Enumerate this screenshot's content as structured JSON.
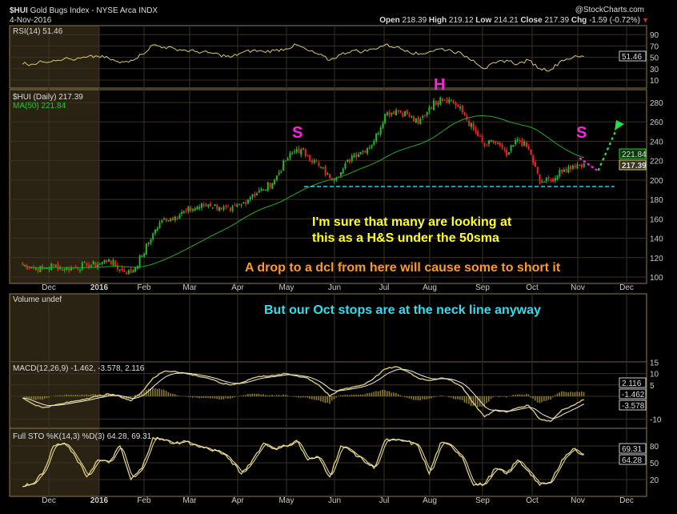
{
  "header": {
    "symbol": "$HUI",
    "name": "Gold Bugs Index - NYSE Arca INDX",
    "date": "4-Nov-2016",
    "brand": "@StockCharts.com",
    "open_label": "Open",
    "open": "218.39",
    "high_label": "High",
    "high": "219.12",
    "low_label": "Low",
    "low": "214.21",
    "close_label": "Close",
    "close": "217.39",
    "chg_label": "Chg",
    "chg": "-1.59 (-0.72%)"
  },
  "colors": {
    "up": "#22bb22",
    "down": "#ee2222",
    "ma": "#22aa22",
    "ind": "#d8c878",
    "grid": "#3a3222",
    "neckline": "#33ccdd",
    "magenta": "#ff22dd",
    "arrow": "#22dd44"
  },
  "panels": {
    "rsi": {
      "legend": "RSI(14) 51.46",
      "value": "51.46",
      "ticks": [
        "90",
        "70",
        "50",
        "30",
        "10"
      ]
    },
    "price": {
      "legend1": "$HUI (Daily) 217.39",
      "legend2": "MA(50) 221.84",
      "ma_value": "221.84",
      "close_value": "217.39",
      "ticks": [
        "280",
        "260",
        "240",
        "220",
        "200",
        "180",
        "160",
        "140",
        "120",
        "100"
      ]
    },
    "volume": {
      "legend": "Volume undef"
    },
    "macd": {
      "legend": "MACD(12,26,9) -1.462, -3.578, 2.116",
      "v1": "2.116",
      "v2": "-1.462",
      "v3": "-3.578",
      "ticks": [
        "15",
        "10",
        "5",
        "-10"
      ]
    },
    "sto": {
      "legend": "Full STO %K(14,3) %D(3) 64.28, 69.31",
      "v1": "69.31",
      "v2": "64.28",
      "ticks": [
        "80",
        "50",
        "20"
      ]
    }
  },
  "months": [
    "Dec",
    "2016",
    "Feb",
    "Mar",
    "Apr",
    "May",
    "Jun",
    "Jul",
    "Aug",
    "Sep",
    "Oct",
    "Nov",
    "Dec"
  ],
  "annotations": {
    "s1": "S",
    "h": "H",
    "s2": "S",
    "line1": "I'm sure that many are looking at",
    "line2": "this as a H&S under the 50sma",
    "line3": "A drop to a dcl from here will cause some to short it",
    "line4": "But our Oct stops are at the neck line anyway"
  },
  "chart_data": {
    "type": "candlestick",
    "title": "$HUI Gold Bugs Index - NYSE Arca INDX",
    "ylim": [
      100,
      290
    ],
    "dates": [
      "2015-11-13",
      "2015-11-20",
      "2015-11-27",
      "2015-12-04",
      "2015-12-11",
      "2015-12-18",
      "2015-12-25",
      "2016-01-01",
      "2016-01-08",
      "2016-01-15",
      "2016-01-22",
      "2016-01-29",
      "2016-02-05",
      "2016-02-12",
      "2016-02-19",
      "2016-02-26",
      "2016-03-04",
      "2016-03-11",
      "2016-03-18",
      "2016-03-25",
      "2016-04-01",
      "2016-04-08",
      "2016-04-15",
      "2016-04-22",
      "2016-04-29",
      "2016-05-06",
      "2016-05-13",
      "2016-05-20",
      "2016-05-27",
      "2016-06-03",
      "2016-06-10",
      "2016-06-17",
      "2016-06-24",
      "2016-07-01",
      "2016-07-08",
      "2016-07-15",
      "2016-07-22",
      "2016-07-29",
      "2016-08-05",
      "2016-08-12",
      "2016-08-19",
      "2016-08-26",
      "2016-09-02",
      "2016-09-09",
      "2016-09-16",
      "2016-09-23",
      "2016-09-30",
      "2016-10-07",
      "2016-10-14",
      "2016-10-21",
      "2016-10-28",
      "2016-11-04"
    ],
    "close": [
      113,
      110,
      108,
      112,
      108,
      110,
      112,
      113,
      118,
      108,
      104,
      122,
      145,
      160,
      162,
      168,
      172,
      175,
      172,
      168,
      175,
      185,
      190,
      200,
      220,
      232,
      225,
      215,
      202,
      208,
      225,
      230,
      240,
      268,
      272,
      268,
      258,
      275,
      285,
      282,
      270,
      252,
      235,
      240,
      225,
      242,
      232,
      198,
      200,
      208,
      215,
      217.39
    ],
    "ma50_last": 221.84,
    "neckline": 195,
    "rsi": [
      40,
      38,
      42,
      45,
      48,
      46,
      50,
      52,
      48,
      40,
      45,
      55,
      72,
      68,
      65,
      62,
      60,
      58,
      55,
      50,
      58,
      62,
      60,
      62,
      65,
      72,
      62,
      55,
      45,
      55,
      62,
      60,
      65,
      72,
      68,
      62,
      55,
      60,
      65,
      62,
      55,
      45,
      30,
      40,
      45,
      38,
      45,
      30,
      28,
      45,
      50,
      51.46
    ],
    "macd": [
      0,
      -3,
      -5,
      -4,
      -3,
      -2,
      -1,
      0,
      1,
      0,
      -2,
      2,
      8,
      11,
      11,
      10,
      9,
      8,
      6,
      5,
      6,
      8,
      9,
      9,
      10,
      9,
      8,
      5,
      0,
      3,
      4,
      5,
      8,
      12,
      13,
      11,
      8,
      7,
      8,
      7,
      4,
      -3,
      -9,
      -6,
      -7,
      -5,
      -4,
      -10,
      -11,
      -6,
      -4,
      -1.462
    ],
    "sto_k": [
      10,
      12,
      30,
      80,
      85,
      60,
      25,
      55,
      50,
      80,
      20,
      40,
      95,
      90,
      85,
      88,
      80,
      75,
      70,
      55,
      30,
      55,
      85,
      75,
      80,
      90,
      55,
      60,
      25,
      80,
      70,
      55,
      40,
      90,
      90,
      88,
      80,
      30,
      85,
      80,
      60,
      10,
      12,
      40,
      30,
      55,
      35,
      10,
      15,
      55,
      75,
      64.28
    ]
  }
}
